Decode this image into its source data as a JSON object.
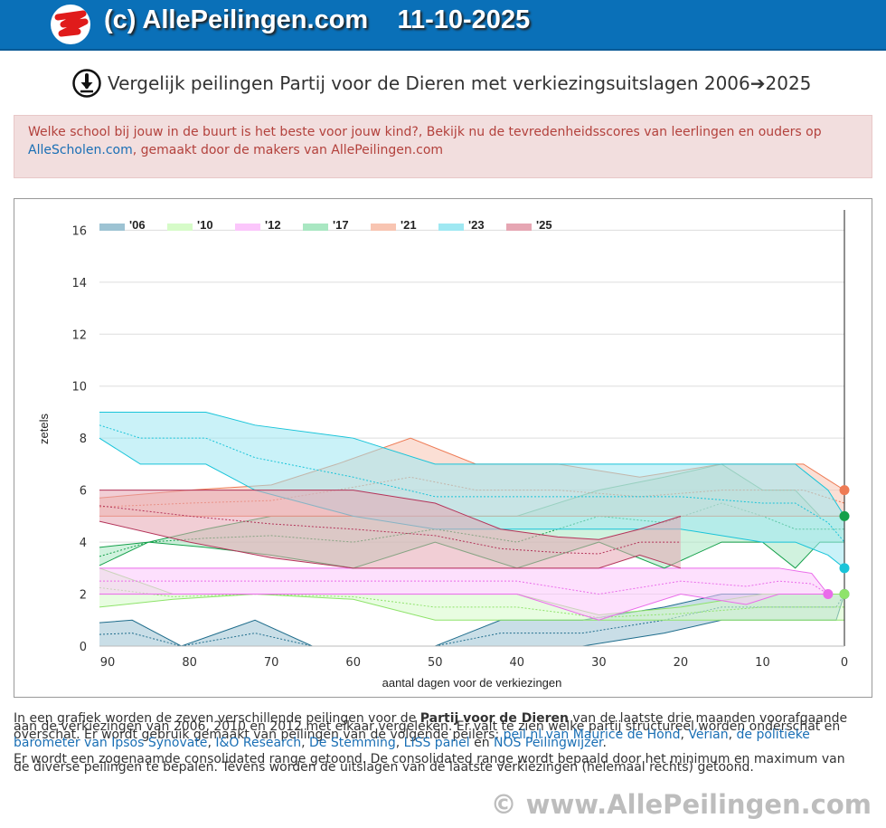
{
  "header": {
    "site_title": "(c) AllePeilingen.com",
    "date": "11-10-2025",
    "brand_color": "#0a70b8"
  },
  "page": {
    "title": "Vergelijk peilingen Partij voor de Dieren met verkiezingsuitslagen 2006➔2025",
    "download_icon": "download-icon"
  },
  "notice": {
    "text_before": "Welke school bij jouw in de buurt is het beste voor jouw kind?, Bekijk nu de tevredenheidsscores van leerlingen en ouders op ",
    "link": "AlleScholen.com",
    "text_after": ", gemaakt door de makers van AllePeilingen.com"
  },
  "description": {
    "p1_a": "In een grafiek worden de zeven verschillende peilingen voor de ",
    "p1_party": "Partij voor de Dieren",
    "p1_b": " van de laatste drie maanden voorafgaande aan de verkiezingen van 2006, 2010 en 2012 met elkaar vergeleken. Er valt te zien welke partij structureel worden onderschat en overschat. Er wordt gebruik gemaakt van peilingen van de volgende peilers: ",
    "pollster_1": "peil.nl van Maurice de Hond",
    "sep_1": ", ",
    "pollster_2": "Verian",
    "sep_2": ", ",
    "pollster_3": "de politieke barometer van Ipsos Synovate",
    "sep_3": ", ",
    "pollster_4": "I&O Research",
    "sep_4": ", ",
    "pollster_5": "De Stemming",
    "sep_5": ", ",
    "pollster_6": "LISS panel",
    "sep_6": " en ",
    "pollster_7": "NOS Peilingwijzer",
    "end": ".",
    "p2": "Er wordt een zogenaamde consolidated range getoond. De consolidated range wordt bepaald door het minimum en maximum van de diverse peilingen te bepalen. Tevens worden de uitslagen van de laatste verkiezingen (helemaal rechts) getoond."
  },
  "footer": {
    "text": "© www.AllePeilingen.com"
  },
  "chart_data": {
    "type": "area",
    "title": "",
    "xlabel": "aantal dagen voor de verkiezingen",
    "ylabel": "zetels",
    "xlim": [
      91,
      0
    ],
    "ylim": [
      0,
      16.5
    ],
    "x_ticks": [
      90,
      80,
      70,
      60,
      50,
      40,
      30,
      20,
      10,
      0
    ],
    "y_ticks": [
      0,
      2,
      4,
      6,
      8,
      10,
      12,
      14,
      16
    ],
    "grid": true,
    "legend_position": "top-left",
    "series": [
      {
        "name": "'06",
        "fill": "#9dc3d3",
        "line": "#1f6d8c",
        "x": [
          91,
          87,
          81,
          72,
          65,
          55,
          50,
          42,
          32,
          22,
          15,
          8,
          3,
          1,
          0
        ],
        "lo": [
          0,
          0,
          0,
          0,
          0,
          0,
          0,
          0,
          0,
          0.5,
          1,
          1,
          1,
          1,
          2
        ],
        "hi": [
          0.9,
          1,
          0,
          1,
          0,
          0,
          0,
          1,
          1,
          1.5,
          2,
          2,
          2,
          2,
          2
        ],
        "result": 2
      },
      {
        "name": "'10",
        "fill": "#d6fbc8",
        "line": "#8ee36a",
        "x": [
          91,
          82,
          72,
          60,
          50,
          40,
          30,
          20,
          10,
          3,
          0
        ],
        "lo": [
          1.5,
          1.8,
          2,
          1.8,
          1,
          1,
          1,
          1,
          1,
          1,
          1
        ],
        "hi": [
          3,
          2,
          2,
          2,
          2,
          2,
          1.2,
          1.5,
          2,
          2,
          2
        ],
        "result": 2
      },
      {
        "name": "'12",
        "fill": "#fbc6fb",
        "line": "#ea6cea",
        "x": [
          91,
          80,
          70,
          60,
          56,
          50,
          40,
          30,
          20,
          12,
          8,
          4,
          2
        ],
        "lo": [
          2,
          2,
          2,
          2,
          2,
          2,
          2,
          1,
          2,
          1.6,
          2,
          2,
          2
        ],
        "hi": [
          3,
          3,
          3,
          3,
          3,
          3,
          3,
          3,
          3,
          3,
          3,
          2.8,
          2
        ],
        "result": 2
      },
      {
        "name": "'17",
        "fill": "#a9e7c2",
        "line": "#14a04a",
        "x": [
          91,
          85,
          78,
          70,
          60,
          50,
          40,
          30,
          22,
          15,
          10,
          6,
          3,
          0
        ],
        "lo": [
          3.1,
          4,
          3.8,
          3.5,
          3,
          4,
          3,
          4,
          3,
          4,
          4,
          3,
          4,
          4
        ],
        "hi": [
          3.8,
          4,
          4.5,
          5,
          5,
          5,
          5,
          6,
          6.5,
          7,
          6,
          6,
          5,
          5
        ],
        "result": 5
      },
      {
        "name": "'21",
        "fill": "#f8c5b2",
        "line": "#ee7b55",
        "x": [
          91,
          80,
          70,
          62,
          53,
          45,
          35,
          25,
          15,
          5,
          2,
          0
        ],
        "lo": [
          5,
          5,
          5,
          5,
          5,
          5,
          5,
          5,
          5,
          5,
          5,
          5
        ],
        "hi": [
          5.7,
          6,
          6.2,
          7,
          8,
          7,
          7,
          6.5,
          7,
          7,
          6.4,
          6
        ],
        "result": 6
      },
      {
        "name": "'23",
        "fill": "#9fe8f2",
        "line": "#19c4d9",
        "x": [
          91,
          86,
          78,
          72,
          60,
          50,
          40,
          30,
          20,
          10,
          6,
          2,
          0
        ],
        "lo": [
          8,
          7,
          7,
          6,
          5,
          4.5,
          4.5,
          4.5,
          4.5,
          4,
          4,
          3.5,
          3
        ],
        "hi": [
          9,
          9,
          9,
          8.5,
          8,
          7,
          7,
          7,
          7,
          7,
          7,
          6,
          5
        ],
        "result": 3
      },
      {
        "name": "'25",
        "fill": "#e6a6b3",
        "line": "#b4345a",
        "x": [
          91,
          80,
          70,
          60,
          50,
          42,
          35,
          30,
          25,
          20
        ],
        "lo": [
          4.8,
          4,
          3.4,
          3,
          3,
          3,
          3,
          3,
          3.5,
          3
        ],
        "hi": [
          6,
          6,
          6,
          6,
          5.5,
          4.5,
          4.2,
          4.1,
          4.5,
          5
        ],
        "result": null
      }
    ]
  }
}
